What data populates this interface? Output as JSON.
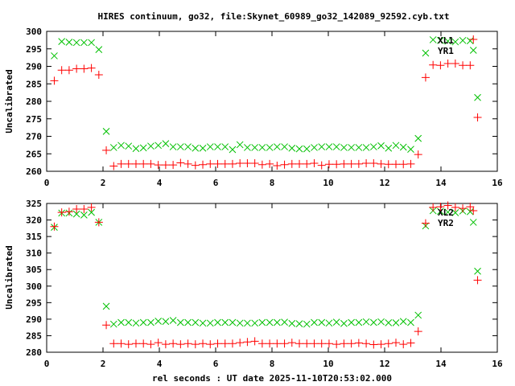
{
  "chart_data": [
    {
      "type": "scatter",
      "title": "HIRES continuum, go32, file:Skynet_60989_go32_142089_92592.cyb.txt",
      "xlabel": "",
      "ylabel": "Uncalibrated",
      "xlim": [
        0,
        16
      ],
      "ylim": [
        260,
        300
      ],
      "xticks": [
        0,
        2,
        4,
        6,
        8,
        10,
        12,
        14,
        16
      ],
      "yticks": [
        260,
        265,
        270,
        275,
        280,
        285,
        290,
        295,
        300
      ],
      "x_start": 0.27,
      "x_step": 0.2637,
      "legend_position": "top-right",
      "series": [
        {
          "name": "XL1",
          "marker": "x",
          "color": "#00c000",
          "values": [
            293.0,
            297.1,
            296.9,
            296.8,
            296.8,
            296.8,
            294.8,
            271.4,
            266.8,
            267.4,
            267.2,
            266.5,
            266.7,
            267.2,
            267.4,
            267.9,
            267.0,
            267.0,
            267.0,
            266.6,
            266.6,
            267.0,
            267.0,
            267.0,
            266.2,
            267.6,
            266.8,
            266.8,
            266.8,
            266.8,
            267.0,
            267.0,
            266.6,
            266.4,
            266.4,
            266.8,
            267.0,
            267.0,
            267.0,
            266.8,
            266.8,
            266.8,
            266.8,
            267.0,
            267.3,
            266.6,
            267.4,
            266.9,
            266.3,
            269.4,
            293.8,
            297.6,
            297.4,
            297.2,
            297.0,
            297.4,
            297.3,
            281.1
          ],
          "extra": [
            [
              15.15,
              294.6
            ]
          ]
        },
        {
          "name": "YR1",
          "marker": "+",
          "color": "#ff0000",
          "values": [
            285.9,
            288.9,
            288.9,
            289.3,
            289.3,
            289.5,
            287.6,
            266.0,
            261.5,
            262.1,
            262.1,
            262.1,
            262.1,
            262.1,
            261.8,
            261.8,
            261.8,
            262.4,
            262.1,
            261.7,
            261.9,
            262.1,
            262.1,
            262.1,
            262.1,
            262.3,
            262.3,
            262.3,
            261.9,
            262.1,
            261.6,
            261.9,
            262.1,
            262.1,
            262.1,
            262.3,
            261.7,
            262.0,
            262.0,
            262.1,
            262.1,
            262.1,
            262.3,
            262.3,
            262.1,
            262.0,
            262.0,
            262.0,
            262.1,
            264.8,
            286.8,
            290.4,
            290.3,
            290.8,
            290.8,
            290.3,
            290.3,
            275.4
          ],
          "extra": [
            [
              15.15,
              297.7
            ]
          ]
        }
      ]
    },
    {
      "type": "scatter",
      "xlabel": "rel seconds : UT date 2025-11-10T20:53:02.000",
      "ylabel": "Uncalibrated",
      "xlim": [
        0,
        16
      ],
      "ylim": [
        280,
        325
      ],
      "xticks": [
        0,
        2,
        4,
        6,
        8,
        10,
        12,
        14,
        16
      ],
      "yticks": [
        280,
        285,
        290,
        295,
        300,
        305,
        310,
        315,
        320,
        325
      ],
      "x_start": 0.27,
      "x_step": 0.2637,
      "legend_position": "top-right",
      "series": [
        {
          "name": "XL2",
          "marker": "x",
          "color": "#00c000",
          "values": [
            317.8,
            322.1,
            322.1,
            321.8,
            321.5,
            322.3,
            319.3,
            293.9,
            288.5,
            289.0,
            289.0,
            288.8,
            289.0,
            289.0,
            289.4,
            289.3,
            289.6,
            289.0,
            289.0,
            289.0,
            288.8,
            288.8,
            289.0,
            289.0,
            289.0,
            288.8,
            288.8,
            288.8,
            289.0,
            289.0,
            289.0,
            289.1,
            288.7,
            288.6,
            288.5,
            289.0,
            289.0,
            288.8,
            289.1,
            288.7,
            289.0,
            289.0,
            289.2,
            289.0,
            289.2,
            288.9,
            288.9,
            289.3,
            289.0,
            291.2,
            318.2,
            322.8,
            322.6,
            322.4,
            322.2,
            322.7,
            322.5,
            304.5
          ],
          "extra": [
            [
              15.15,
              319.3
            ]
          ]
        },
        {
          "name": "YR2",
          "marker": "+",
          "color": "#ff0000",
          "values": [
            318.0,
            322.3,
            322.5,
            323.3,
            323.3,
            323.8,
            319.3,
            288.2,
            282.6,
            282.6,
            282.4,
            282.6,
            282.6,
            282.4,
            282.9,
            282.4,
            282.6,
            282.4,
            282.6,
            282.4,
            282.6,
            282.4,
            282.6,
            282.6,
            282.6,
            282.9,
            283.1,
            283.3,
            282.6,
            282.6,
            282.6,
            282.6,
            282.9,
            282.6,
            282.6,
            282.6,
            282.6,
            282.6,
            282.4,
            282.6,
            282.6,
            282.8,
            282.6,
            282.3,
            282.4,
            282.6,
            282.9,
            282.4,
            282.8,
            286.3,
            319.0,
            323.8,
            324.0,
            324.4,
            323.8,
            323.5,
            324.0,
            301.8
          ],
          "extra": [
            [
              15.15,
              322.8
            ]
          ]
        }
      ]
    }
  ]
}
